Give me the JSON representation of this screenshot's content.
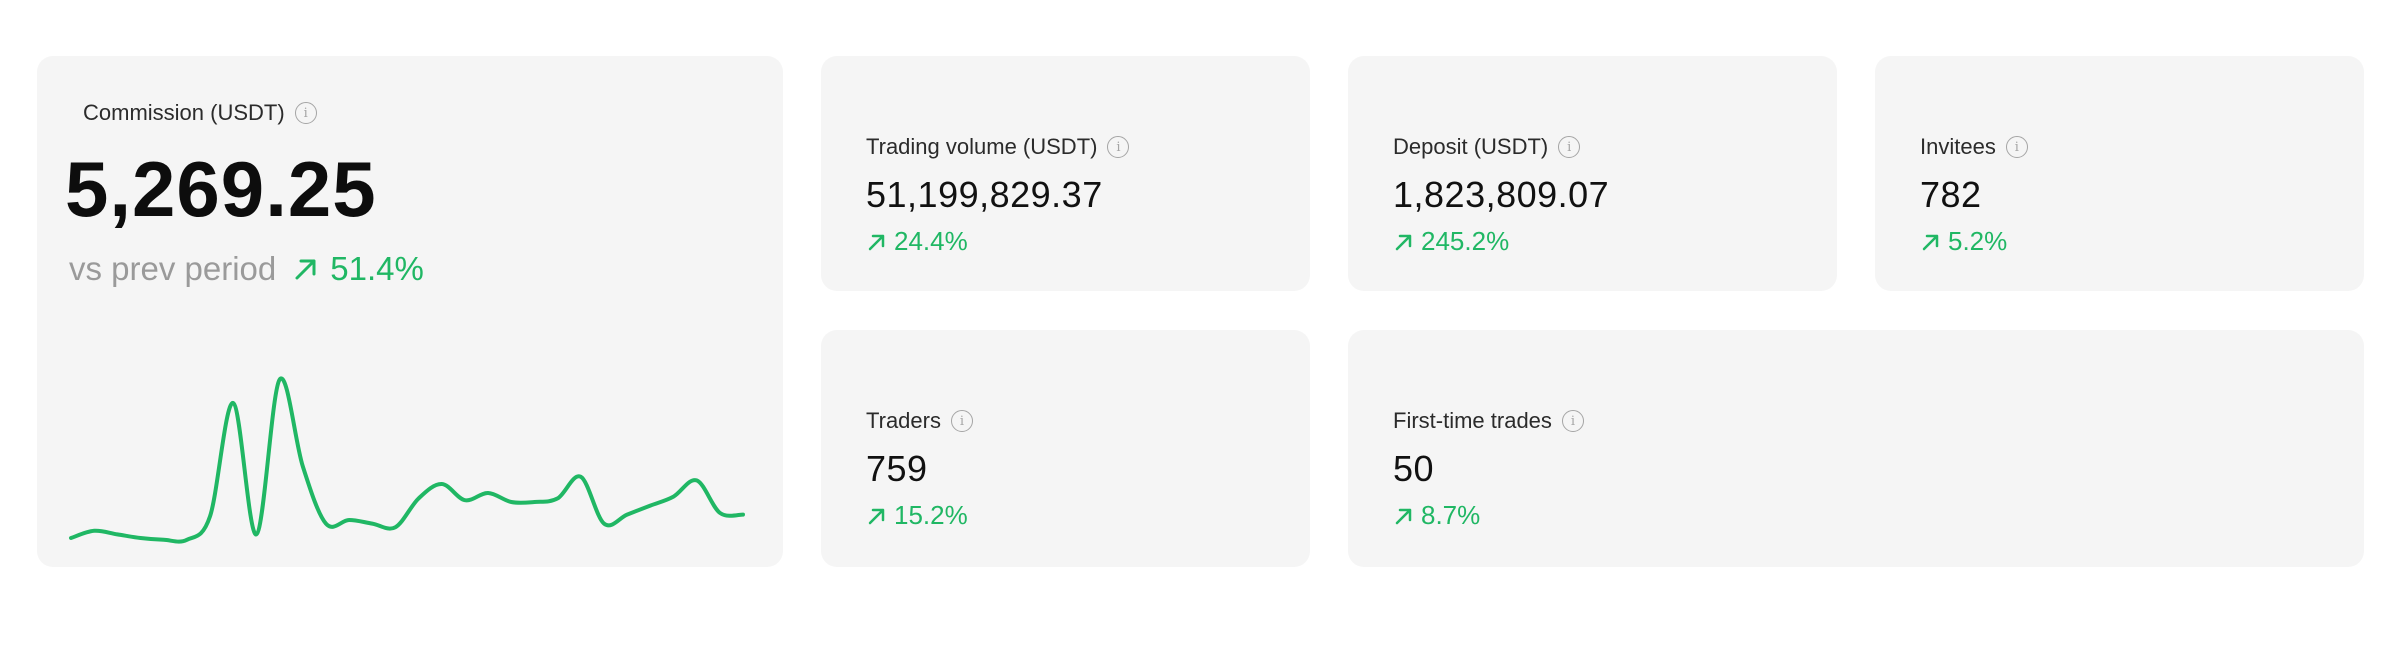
{
  "colors": {
    "card_bg": "#f5f5f5",
    "positive": "#20b764",
    "muted": "#9a9a9a"
  },
  "commission": {
    "label": "Commission (USDT)",
    "value": "5,269.25",
    "compare_label": "vs prev period",
    "change": "51.4%",
    "trend": [
      0.1,
      0.14,
      0.12,
      0.1,
      0.09,
      0.09,
      0.22,
      0.85,
      0.12,
      0.98,
      0.5,
      0.18,
      0.2,
      0.18,
      0.16,
      0.32,
      0.4,
      0.31,
      0.35,
      0.3,
      0.3,
      0.32,
      0.44,
      0.18,
      0.23,
      0.28,
      0.33,
      0.42,
      0.24,
      0.23
    ]
  },
  "metrics": {
    "trading_volume": {
      "label": "Trading volume (USDT)",
      "value": "51,199,829.37",
      "change": "24.4%"
    },
    "deposit": {
      "label": "Deposit (USDT)",
      "value": "1,823,809.07",
      "change": "245.2%"
    },
    "invitees": {
      "label": "Invitees",
      "value": "782",
      "change": "5.2%"
    },
    "traders": {
      "label": "Traders",
      "value": "759",
      "change": "15.2%"
    },
    "first_time_trades": {
      "label": "First-time trades",
      "value": "50",
      "change": "8.7%"
    }
  },
  "icons": {
    "info": "info-icon",
    "trend_up": "arrow-up-right-icon"
  }
}
